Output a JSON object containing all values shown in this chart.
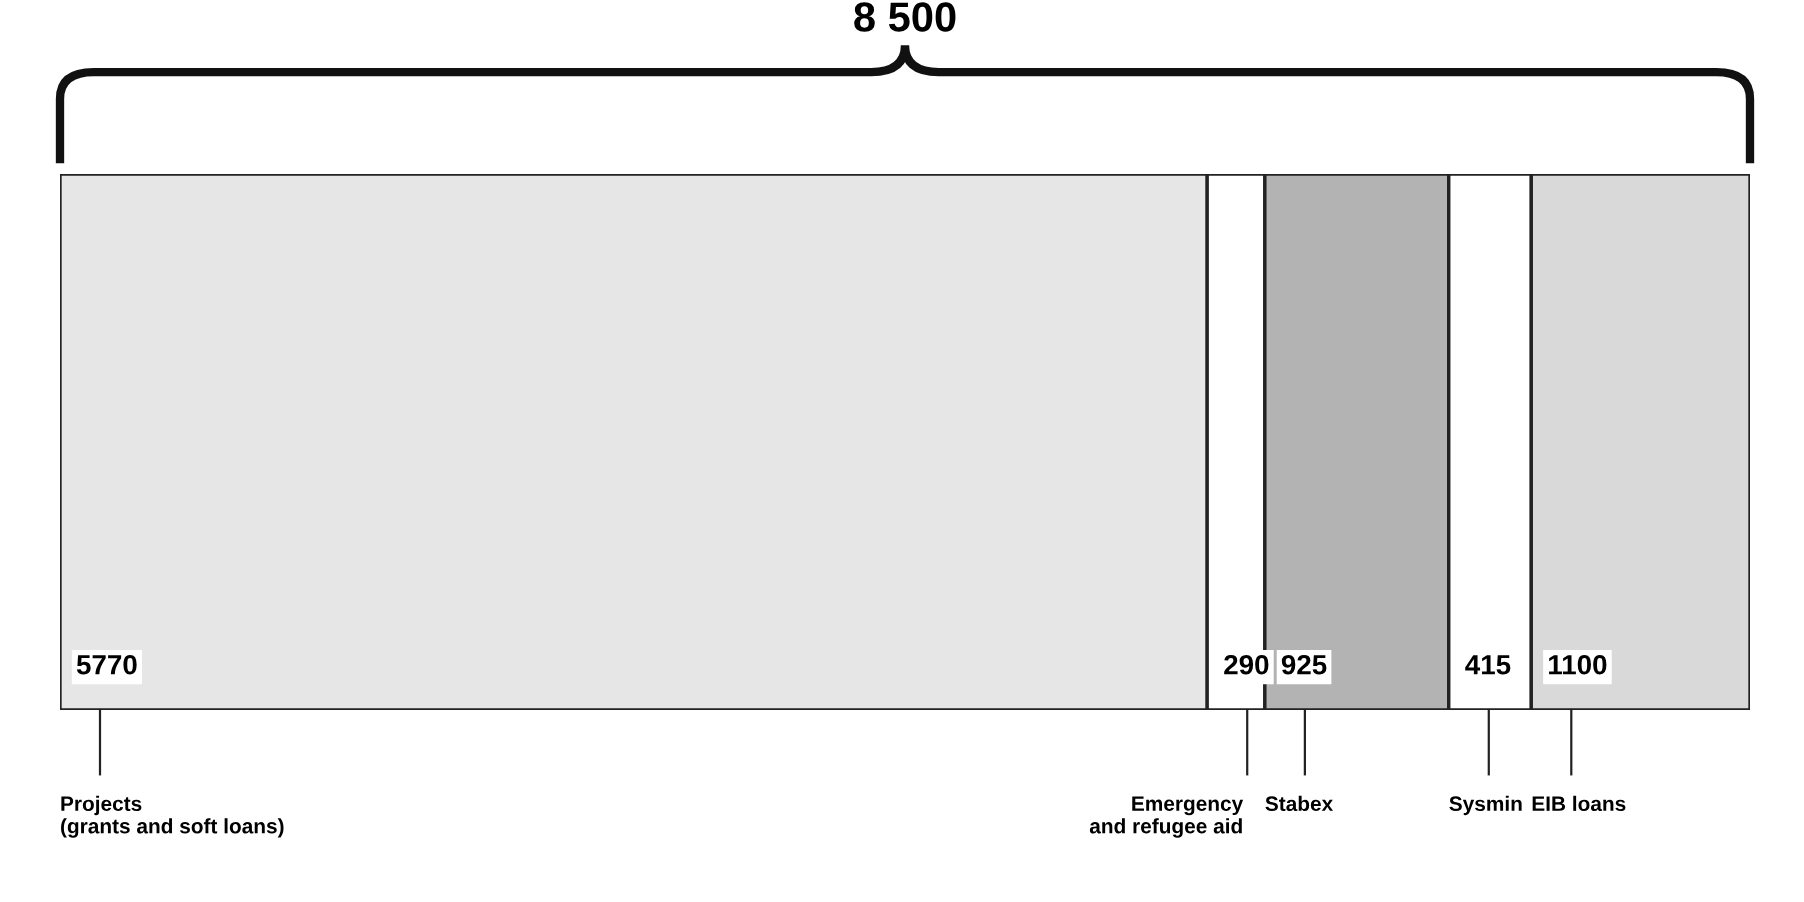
{
  "chart_data": {
    "type": "bar",
    "orientation": "horizontal",
    "stacked": true,
    "categories": [
      null
    ],
    "series": [
      {
        "name": "Projects\n(grants and soft loans)",
        "color": "#e6e6e6",
        "values": [
          5770
        ]
      },
      {
        "name": "Emergency\nand refugee aid",
        "color": "#ffffff",
        "values": [
          290
        ]
      },
      {
        "name": "Stabex",
        "color": "#b3b3b3",
        "values": [
          925
        ]
      },
      {
        "name": "Sysmin",
        "color": "#ffffff",
        "values": [
          415
        ]
      },
      {
        "name": "EIB loans",
        "color": "#d9d9d9",
        "values": [
          1100
        ]
      }
    ],
    "data_labels": true,
    "annotations": [
      "8 500"
    ],
    "legend": false
  }
}
